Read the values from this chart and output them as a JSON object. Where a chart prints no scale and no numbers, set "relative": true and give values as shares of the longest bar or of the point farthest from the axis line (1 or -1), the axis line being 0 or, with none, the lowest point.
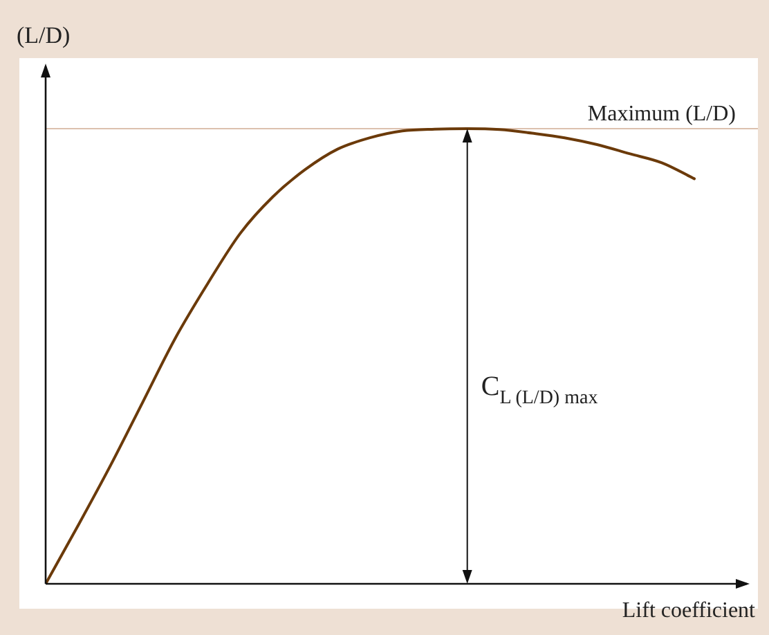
{
  "chart_data": {
    "type": "line",
    "relative": true,
    "xlabel": "Lift coefficient",
    "ylabel": "(L/D)",
    "categories": [
      null,
      null,
      null,
      null,
      null,
      null,
      null,
      null,
      null,
      null,
      null,
      null,
      null,
      null,
      null,
      null,
      null,
      null,
      null,
      null,
      null
    ],
    "series": [
      {
        "color": "#6b3a0a",
        "values": [
          0,
          0.128,
          0.26,
          0.4,
          0.54,
          0.66,
          0.77,
          0.85,
          0.91,
          0.955,
          0.98,
          0.995,
          0.999,
          1,
          0.998,
          0.99,
          0.98,
          0.965,
          0.945,
          0.925,
          0.89
        ]
      }
    ],
    "ref_lines": [
      {
        "axis": "y",
        "value": 1,
        "label": "Maximum (L/D)",
        "color": "#dcc0ae"
      }
    ],
    "annotations": [
      "C$_{L (L/D) max}$"
    ],
    "legend": false,
    "marker": "none",
    "line_style": "solid"
  }
}
